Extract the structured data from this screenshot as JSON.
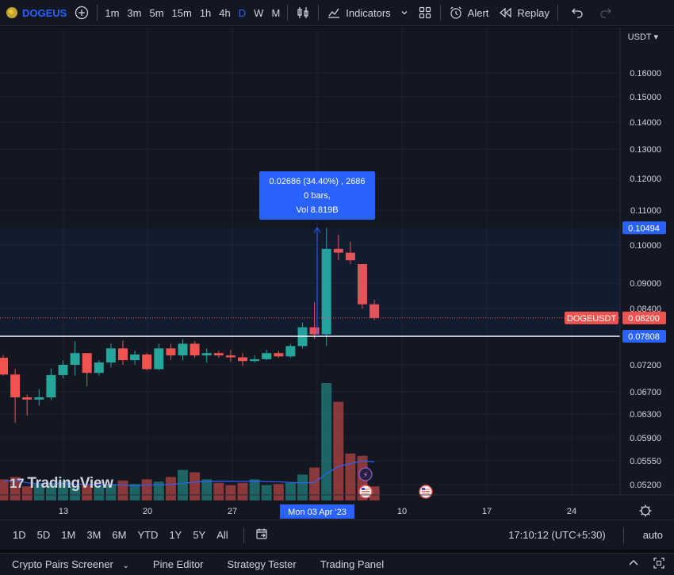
{
  "toolbar": {
    "symbol": "DOGEUS",
    "add_symbol_icon": "plus-circle-icon",
    "timeframes": [
      "1m",
      "3m",
      "5m",
      "15m",
      "1h",
      "4h",
      "D",
      "W",
      "M"
    ],
    "active_timeframe": "D",
    "chart_type_icon": "candles-icon",
    "indicators_label": "Indicators",
    "layouts_icon": "grid-icon",
    "alert_label": "Alert",
    "replay_label": "Replay",
    "undo_icon": "undo-icon",
    "redo_icon": "redo-icon"
  },
  "chart": {
    "currency": "USDT",
    "price_ticks": [
      "0.16000",
      "0.15000",
      "0.14000",
      "0.13000",
      "0.12000",
      "0.11000",
      "0.10000",
      "0.09000",
      "0.08400",
      "0.07200",
      "0.06700",
      "0.06300",
      "0.05900",
      "0.05550",
      "0.05200"
    ],
    "date_ticks": [
      "13",
      "20",
      "27",
      "10",
      "17",
      "24"
    ],
    "crosshair_date": "Mon 03 Apr '23",
    "labels": {
      "measure_top": "0.10494",
      "last_price_symbol": "DOGEUSDT",
      "last_price": "0.08200",
      "measure_bottom": "0.07808"
    },
    "tooltip": {
      "line1": "0.02686 (34.40%) , 2686",
      "line2": "0 bars,",
      "line3": "Vol 8.819B"
    },
    "watermark": "TradingView",
    "colors": {
      "up": "#26a69a",
      "down": "#ef5350",
      "accent": "#2962ff",
      "background": "#131722"
    }
  },
  "chart_data": {
    "type": "candlestick",
    "title": "DOGEUSDT",
    "x_ticks": [
      "13",
      "20",
      "27",
      "Mon 03 Apr '23",
      "10",
      "17",
      "24"
    ],
    "ylim": [
      0.05,
      0.165
    ],
    "candles": [
      {
        "o": 0.0735,
        "h": 0.0741,
        "l": 0.07,
        "c": 0.0702
      },
      {
        "o": 0.0702,
        "h": 0.0712,
        "l": 0.0615,
        "c": 0.066
      },
      {
        "o": 0.066,
        "h": 0.0665,
        "l": 0.0627,
        "c": 0.0656
      },
      {
        "o": 0.0656,
        "h": 0.0675,
        "l": 0.0645,
        "c": 0.066
      },
      {
        "o": 0.066,
        "h": 0.0713,
        "l": 0.0655,
        "c": 0.0701
      },
      {
        "o": 0.0701,
        "h": 0.0729,
        "l": 0.0695,
        "c": 0.072
      },
      {
        "o": 0.072,
        "h": 0.077,
        "l": 0.07,
        "c": 0.0745
      },
      {
        "o": 0.0745,
        "h": 0.0745,
        "l": 0.068,
        "c": 0.0705
      },
      {
        "o": 0.0705,
        "h": 0.073,
        "l": 0.07,
        "c": 0.0725
      },
      {
        "o": 0.0725,
        "h": 0.0765,
        "l": 0.0715,
        "c": 0.0755
      },
      {
        "o": 0.0755,
        "h": 0.0772,
        "l": 0.072,
        "c": 0.073
      },
      {
        "o": 0.073,
        "h": 0.075,
        "l": 0.072,
        "c": 0.0742
      },
      {
        "o": 0.0742,
        "h": 0.0745,
        "l": 0.071,
        "c": 0.0712
      },
      {
        "o": 0.0712,
        "h": 0.0765,
        "l": 0.071,
        "c": 0.0755
      },
      {
        "o": 0.0755,
        "h": 0.0765,
        "l": 0.073,
        "c": 0.074
      },
      {
        "o": 0.074,
        "h": 0.0775,
        "l": 0.073,
        "c": 0.0765
      },
      {
        "o": 0.0765,
        "h": 0.077,
        "l": 0.0735,
        "c": 0.074
      },
      {
        "o": 0.074,
        "h": 0.0755,
        "l": 0.0725,
        "c": 0.0745
      },
      {
        "o": 0.0745,
        "h": 0.075,
        "l": 0.0735,
        "c": 0.074
      },
      {
        "o": 0.074,
        "h": 0.0752,
        "l": 0.0726,
        "c": 0.0736
      },
      {
        "o": 0.0736,
        "h": 0.0745,
        "l": 0.0718,
        "c": 0.0728
      },
      {
        "o": 0.0728,
        "h": 0.074,
        "l": 0.0725,
        "c": 0.0732
      },
      {
        "o": 0.0732,
        "h": 0.0752,
        "l": 0.073,
        "c": 0.0745
      },
      {
        "o": 0.0745,
        "h": 0.075,
        "l": 0.0735,
        "c": 0.0738
      },
      {
        "o": 0.0738,
        "h": 0.0765,
        "l": 0.0735,
        "c": 0.076
      },
      {
        "o": 0.076,
        "h": 0.081,
        "l": 0.0755,
        "c": 0.08
      },
      {
        "o": 0.08,
        "h": 0.0855,
        "l": 0.0775,
        "c": 0.0785
      },
      {
        "o": 0.0785,
        "h": 0.1049,
        "l": 0.076,
        "c": 0.099
      },
      {
        "o": 0.099,
        "h": 0.103,
        "l": 0.096,
        "c": 0.098
      },
      {
        "o": 0.098,
        "h": 0.101,
        "l": 0.095,
        "c": 0.096
      },
      {
        "o": 0.095,
        "h": 0.095,
        "l": 0.084,
        "c": 0.085
      },
      {
        "o": 0.085,
        "h": 0.086,
        "l": 0.0815,
        "c": 0.082
      }
    ],
    "volume_relative": [
      0.18,
      0.2,
      0.12,
      0.14,
      0.15,
      0.16,
      0.12,
      0.13,
      0.12,
      0.14,
      0.17,
      0.14,
      0.18,
      0.16,
      0.2,
      0.26,
      0.24,
      0.18,
      0.15,
      0.13,
      0.15,
      0.18,
      0.13,
      0.14,
      0.15,
      0.22,
      0.28,
      1.0,
      0.84,
      0.4,
      0.38,
      0.12
    ]
  },
  "rangebar": {
    "ranges": [
      "1D",
      "5D",
      "1M",
      "3M",
      "6M",
      "YTD",
      "1Y",
      "5Y",
      "All"
    ],
    "goto_icon": "goto-date-icon",
    "clock": "17:10:12 (UTC+5:30)",
    "scale_mode": "auto"
  },
  "panels": {
    "tabs": [
      "Crypto Pairs Screener",
      "Pine Editor",
      "Strategy Tester",
      "Trading Panel"
    ],
    "collapse_icon": "chevron-up-icon",
    "maximize_icon": "maximize-icon"
  }
}
